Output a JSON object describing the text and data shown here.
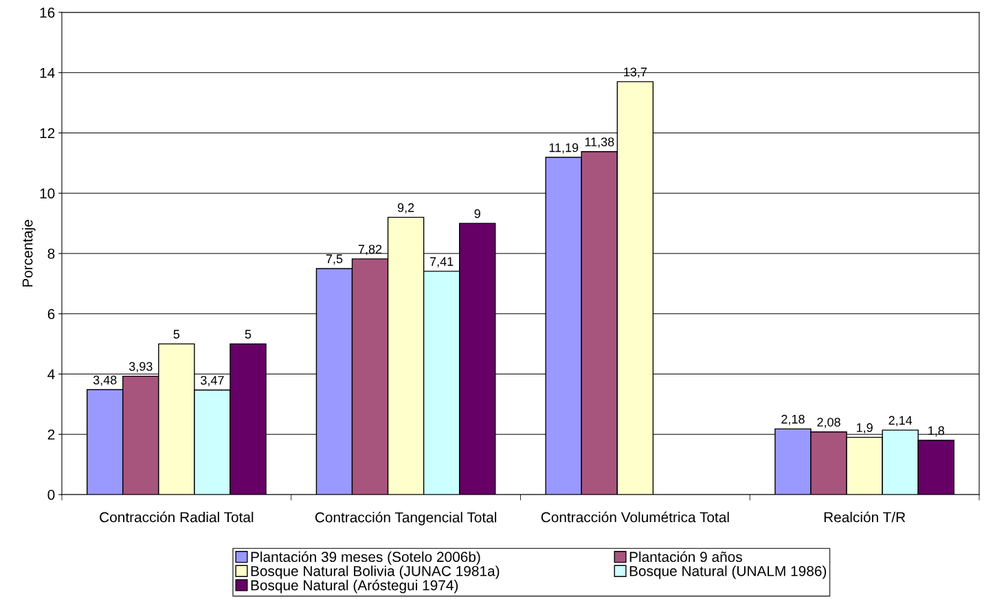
{
  "chart_data": {
    "type": "bar",
    "ylabel": "Porcentaje",
    "categories": [
      "Contracción Radial Total",
      "Contracción Tangencial Total",
      "Contracción Volumétrica Total",
      "Realción T/R"
    ],
    "ylim": [
      0,
      16
    ],
    "yticks": [
      0,
      2,
      4,
      6,
      8,
      10,
      12,
      14,
      16
    ],
    "grid": "y",
    "legend": "bottom",
    "series": [
      {
        "name": "Plantación 39 meses (Sotelo 2006b)",
        "color": "#9999ff",
        "values": [
          3.48,
          7.5,
          11.19,
          2.18
        ],
        "value_labels": [
          "3,48",
          "7,5",
          "11,19",
          "2,18"
        ]
      },
      {
        "name": "Plantación 9 años",
        "color": "#a8557e",
        "values": [
          3.93,
          7.82,
          11.38,
          2.08
        ],
        "value_labels": [
          "3,93",
          "7,82",
          "11,38",
          "2,08"
        ]
      },
      {
        "name": "Bosque Natural Bolivia (JUNAC 1981a)",
        "color": "#ffffcc",
        "values": [
          5,
          9.2,
          13.7,
          1.9
        ],
        "value_labels": [
          "5",
          "9,2",
          "13,7",
          "1,9"
        ]
      },
      {
        "name": "Bosque Natural (UNALM 1986)",
        "color": "#ccffff",
        "values": [
          3.47,
          7.41,
          null,
          2.14
        ],
        "value_labels": [
          "3,47",
          "7,41",
          null,
          "2,14"
        ]
      },
      {
        "name": "Bosque Natural (Aróstegui 1974)",
        "color": "#660066",
        "values": [
          5,
          9,
          null,
          1.8
        ],
        "value_labels": [
          "5",
          "9",
          null,
          "1,8"
        ]
      }
    ]
  }
}
